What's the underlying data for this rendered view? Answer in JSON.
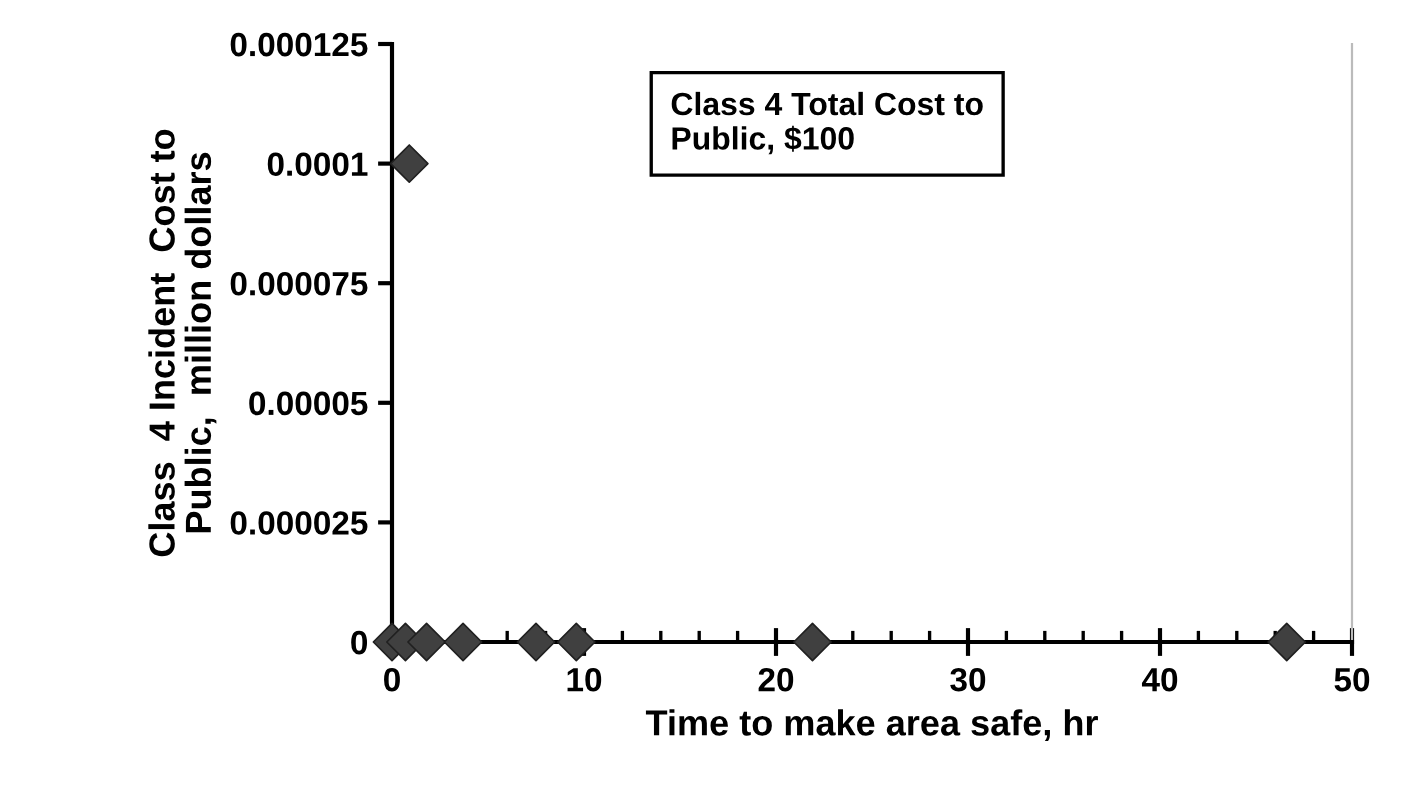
{
  "chart_data": {
    "type": "scatter",
    "xlabel": "Time to make area safe, hr",
    "ylabel": "Class  4 Incident  Cost to\nPublic,  million dollars",
    "x": [
      0,
      0.7,
      0.9,
      1.8,
      3.7,
      7.5,
      9.6,
      21.9,
      46.6
    ],
    "series": [
      {
        "color": "#404040",
        "values": [
          0,
          0,
          0.0001,
          0,
          0,
          0,
          0,
          0,
          0
        ]
      }
    ],
    "marker": "diamond",
    "xlim": [
      0,
      50
    ],
    "xticks": [
      0,
      10,
      20,
      30,
      40,
      50
    ],
    "ylim": [
      0,
      0.000125
    ],
    "yticks": [
      {
        "value": 0,
        "label": "0"
      },
      {
        "value": 2.5e-05,
        "label": "0.000025"
      },
      {
        "value": 5e-05,
        "label": "0.00005"
      },
      {
        "value": 7.5e-05,
        "label": "0.000075"
      },
      {
        "value": 0.0001,
        "label": "0.0001"
      },
      {
        "value": 0.000125,
        "label": "0.000125"
      }
    ],
    "annotations": [
      "Class 4 Total Cost to\nPublic, $100"
    ],
    "grid": false,
    "legend": false
  }
}
